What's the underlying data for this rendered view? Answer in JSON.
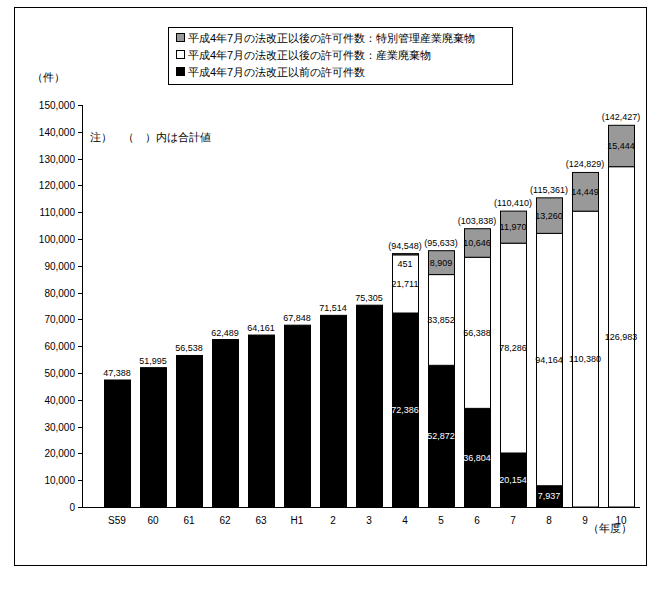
{
  "chart_data": {
    "type": "bar",
    "stacked": true,
    "data_labels": true,
    "grid": false,
    "y_label": "（件）",
    "x_label": "（年度）",
    "note": "注）　（　）内は合計値",
    "categories": [
      "S59",
      "60",
      "61",
      "62",
      "63",
      "H1",
      "2",
      "3",
      "4",
      "5",
      "6",
      "7",
      "8",
      "9",
      "10"
    ],
    "series": [
      {
        "name": "平成4年7月の法改正以前の許可件数",
        "color": "#000000",
        "values": [
          47388,
          51995,
          56538,
          62489,
          64161,
          67848,
          71514,
          75305,
          72386,
          52872,
          36804,
          20154,
          7937,
          null,
          null
        ],
        "value_labels": [
          "47,388",
          "51,995",
          "56,538",
          "62,489",
          "64,161",
          "67,848",
          "71,514",
          "75,305",
          "72,386",
          "52,872",
          "36,804",
          "20,154",
          "7,937",
          null,
          null
        ]
      },
      {
        "name": "平成4年7月の法改正以後の許可件数：産業廃棄物",
        "color": "#ffffff",
        "values": [
          null,
          null,
          null,
          null,
          null,
          null,
          null,
          null,
          21711,
          33852,
          56388,
          78286,
          94164,
          110380,
          126983
        ],
        "value_labels": [
          null,
          null,
          null,
          null,
          null,
          null,
          null,
          null,
          "21,711",
          "33,852",
          "56,388",
          "78,286",
          "94,164",
          "110,380",
          "126,983"
        ]
      },
      {
        "name": "平成4年7月の法改正以後の許可件数：特別管理産業廃棄物",
        "color": "#999999",
        "values": [
          null,
          null,
          null,
          null,
          null,
          null,
          null,
          null,
          451,
          8909,
          10646,
          11970,
          13260,
          14449,
          15444
        ],
        "value_labels": [
          null,
          null,
          null,
          null,
          null,
          null,
          null,
          null,
          "451",
          "8,909",
          "10,646",
          "11,970",
          "13,260",
          "14,449",
          "15,444"
        ]
      }
    ],
    "totals": [
      null,
      null,
      null,
      null,
      null,
      null,
      null,
      null,
      94548,
      95633,
      103838,
      110410,
      115361,
      124829,
      142427
    ],
    "total_labels": [
      null,
      null,
      null,
      null,
      null,
      null,
      null,
      null,
      "(94,548)",
      "(95,633)",
      "(103,838)",
      "(110,410)",
      "(115,361)",
      "(124,829)",
      "(142,427)"
    ],
    "ylim": [
      0,
      150000
    ],
    "yticks": [
      0,
      {
        "value": 10000,
        "label": "10,000"
      },
      {
        "value": 20000,
        "label": "20,000"
      },
      {
        "value": 30000,
        "label": "30,000"
      },
      {
        "value": 40000,
        "label": "40,000"
      },
      {
        "value": 50000,
        "label": "50,000"
      },
      {
        "value": 60000,
        "label": "60,000"
      },
      {
        "value": 70000,
        "label": "70,000"
      },
      {
        "value": 80000,
        "label": "80,000"
      },
      {
        "value": 90000,
        "label": "90,000"
      },
      {
        "value": 100000,
        "label": "100,000"
      },
      {
        "value": 110000,
        "label": "110,000"
      },
      {
        "value": 120000,
        "label": "120,000"
      },
      {
        "value": 130000,
        "label": "130,000"
      },
      {
        "value": 140000,
        "label": "140,000"
      },
      {
        "value": 150000,
        "label": "150,000"
      }
    ]
  }
}
